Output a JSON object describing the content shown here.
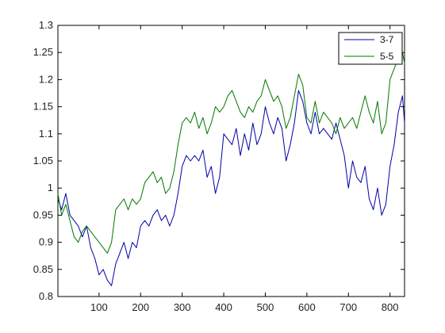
{
  "chart_data": {
    "type": "line",
    "title": "",
    "xlabel": "",
    "ylabel": "",
    "xlim": [
      1,
      835
    ],
    "ylim": [
      0.8,
      1.3
    ],
    "x_ticks": [
      100,
      200,
      300,
      400,
      500,
      600,
      700,
      800
    ],
    "y_ticks": [
      0.8,
      0.85,
      0.9,
      0.95,
      1,
      1.05,
      1.1,
      1.15,
      1.2,
      1.25,
      1.3
    ],
    "x_tick_labels": [
      "100",
      "200",
      "300",
      "400",
      "500",
      "600",
      "700",
      "800"
    ],
    "y_tick_labels": [
      "0.8",
      "0.85",
      "0.9",
      "0.95",
      "1",
      "1.05",
      "1.1",
      "1.15",
      "1.2",
      "1.25",
      "1.3"
    ],
    "grid": false,
    "legend_position": "top-right",
    "series": [
      {
        "name": "3-7",
        "color": "#0000a8",
        "x": [
          1,
          10,
          20,
          30,
          40,
          50,
          60,
          70,
          80,
          90,
          100,
          110,
          120,
          130,
          140,
          150,
          160,
          170,
          180,
          190,
          200,
          210,
          220,
          230,
          240,
          250,
          260,
          270,
          280,
          290,
          300,
          310,
          320,
          330,
          340,
          350,
          360,
          370,
          380,
          390,
          400,
          410,
          420,
          430,
          440,
          450,
          460,
          470,
          480,
          490,
          500,
          510,
          520,
          530,
          540,
          550,
          560,
          570,
          580,
          590,
          600,
          610,
          620,
          630,
          640,
          650,
          660,
          670,
          680,
          690,
          700,
          710,
          720,
          730,
          740,
          750,
          760,
          770,
          780,
          790,
          800,
          810,
          820,
          830,
          835
        ],
        "values": [
          0.98,
          0.96,
          0.99,
          0.95,
          0.94,
          0.93,
          0.91,
          0.93,
          0.89,
          0.87,
          0.84,
          0.85,
          0.83,
          0.82,
          0.86,
          0.88,
          0.9,
          0.87,
          0.9,
          0.89,
          0.93,
          0.94,
          0.93,
          0.95,
          0.96,
          0.94,
          0.95,
          0.93,
          0.95,
          0.99,
          1.04,
          1.06,
          1.05,
          1.06,
          1.05,
          1.07,
          1.02,
          1.04,
          0.99,
          1.02,
          1.1,
          1.09,
          1.08,
          1.11,
          1.06,
          1.1,
          1.07,
          1.12,
          1.08,
          1.1,
          1.15,
          1.12,
          1.1,
          1.13,
          1.11,
          1.05,
          1.08,
          1.12,
          1.18,
          1.16,
          1.12,
          1.1,
          1.14,
          1.1,
          1.11,
          1.1,
          1.09,
          1.12,
          1.09,
          1.06,
          1.0,
          1.05,
          1.02,
          1.01,
          1.04,
          0.98,
          0.96,
          1.0,
          0.95,
          0.97,
          1.04,
          1.08,
          1.14,
          1.17,
          1.12
        ]
      },
      {
        "name": "5-5",
        "color": "#007700",
        "x": [
          1,
          10,
          20,
          30,
          40,
          50,
          60,
          70,
          80,
          90,
          100,
          110,
          120,
          130,
          140,
          150,
          160,
          170,
          180,
          190,
          200,
          210,
          220,
          230,
          240,
          250,
          260,
          270,
          280,
          290,
          300,
          310,
          320,
          330,
          340,
          350,
          360,
          370,
          380,
          390,
          400,
          410,
          420,
          430,
          440,
          450,
          460,
          470,
          480,
          490,
          500,
          510,
          520,
          530,
          540,
          550,
          560,
          570,
          580,
          590,
          600,
          610,
          620,
          630,
          640,
          650,
          660,
          670,
          680,
          690,
          700,
          710,
          720,
          730,
          740,
          750,
          760,
          770,
          780,
          790,
          800,
          810,
          820,
          830,
          835
        ],
        "values": [
          0.99,
          0.95,
          0.97,
          0.94,
          0.91,
          0.9,
          0.92,
          0.93,
          0.92,
          0.91,
          0.9,
          0.89,
          0.88,
          0.9,
          0.96,
          0.97,
          0.98,
          0.96,
          0.98,
          0.97,
          0.98,
          1.01,
          1.02,
          1.03,
          1.01,
          1.02,
          0.99,
          1.0,
          1.03,
          1.08,
          1.12,
          1.13,
          1.12,
          1.14,
          1.11,
          1.13,
          1.1,
          1.12,
          1.15,
          1.14,
          1.15,
          1.17,
          1.18,
          1.16,
          1.14,
          1.13,
          1.15,
          1.14,
          1.16,
          1.17,
          1.2,
          1.18,
          1.16,
          1.17,
          1.15,
          1.11,
          1.13,
          1.17,
          1.21,
          1.19,
          1.13,
          1.12,
          1.16,
          1.12,
          1.14,
          1.13,
          1.12,
          1.1,
          1.13,
          1.11,
          1.12,
          1.13,
          1.11,
          1.14,
          1.17,
          1.14,
          1.12,
          1.16,
          1.1,
          1.12,
          1.2,
          1.22,
          1.24,
          1.25,
          1.23
        ]
      }
    ]
  }
}
